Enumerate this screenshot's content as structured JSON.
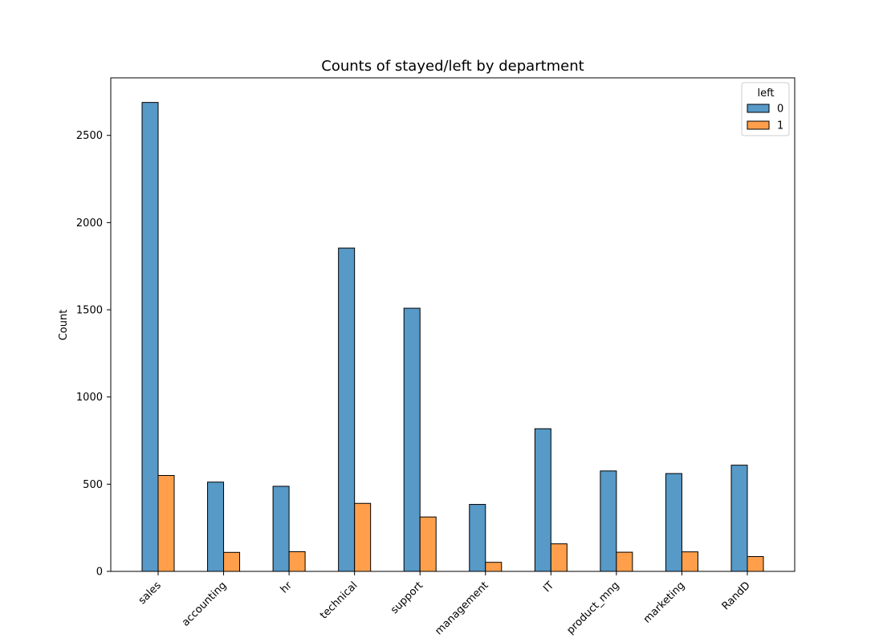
{
  "chart_data": {
    "type": "bar",
    "title": "Counts of stayed/left by department",
    "xlabel": "",
    "ylabel": "Count",
    "categories": [
      "sales",
      "accounting",
      "hr",
      "technical",
      "support",
      "management",
      "IT",
      "product_mng",
      "marketing",
      "RandD"
    ],
    "series": [
      {
        "name": "0",
        "color": "#5799c7",
        "values": [
          2689,
          512,
          488,
          1854,
          1509,
          384,
          818,
          576,
          561,
          609
        ]
      },
      {
        "name": "1",
        "color": "#ff9f4b",
        "values": [
          550,
          109,
          113,
          390,
          312,
          52,
          158,
          110,
          112,
          85
        ]
      }
    ],
    "ylim": [
      0,
      2830
    ],
    "yticks": [
      0,
      500,
      1000,
      1500,
      2000,
      2500
    ],
    "legend": {
      "title": "left",
      "position": "top-right"
    },
    "grid": false
  }
}
